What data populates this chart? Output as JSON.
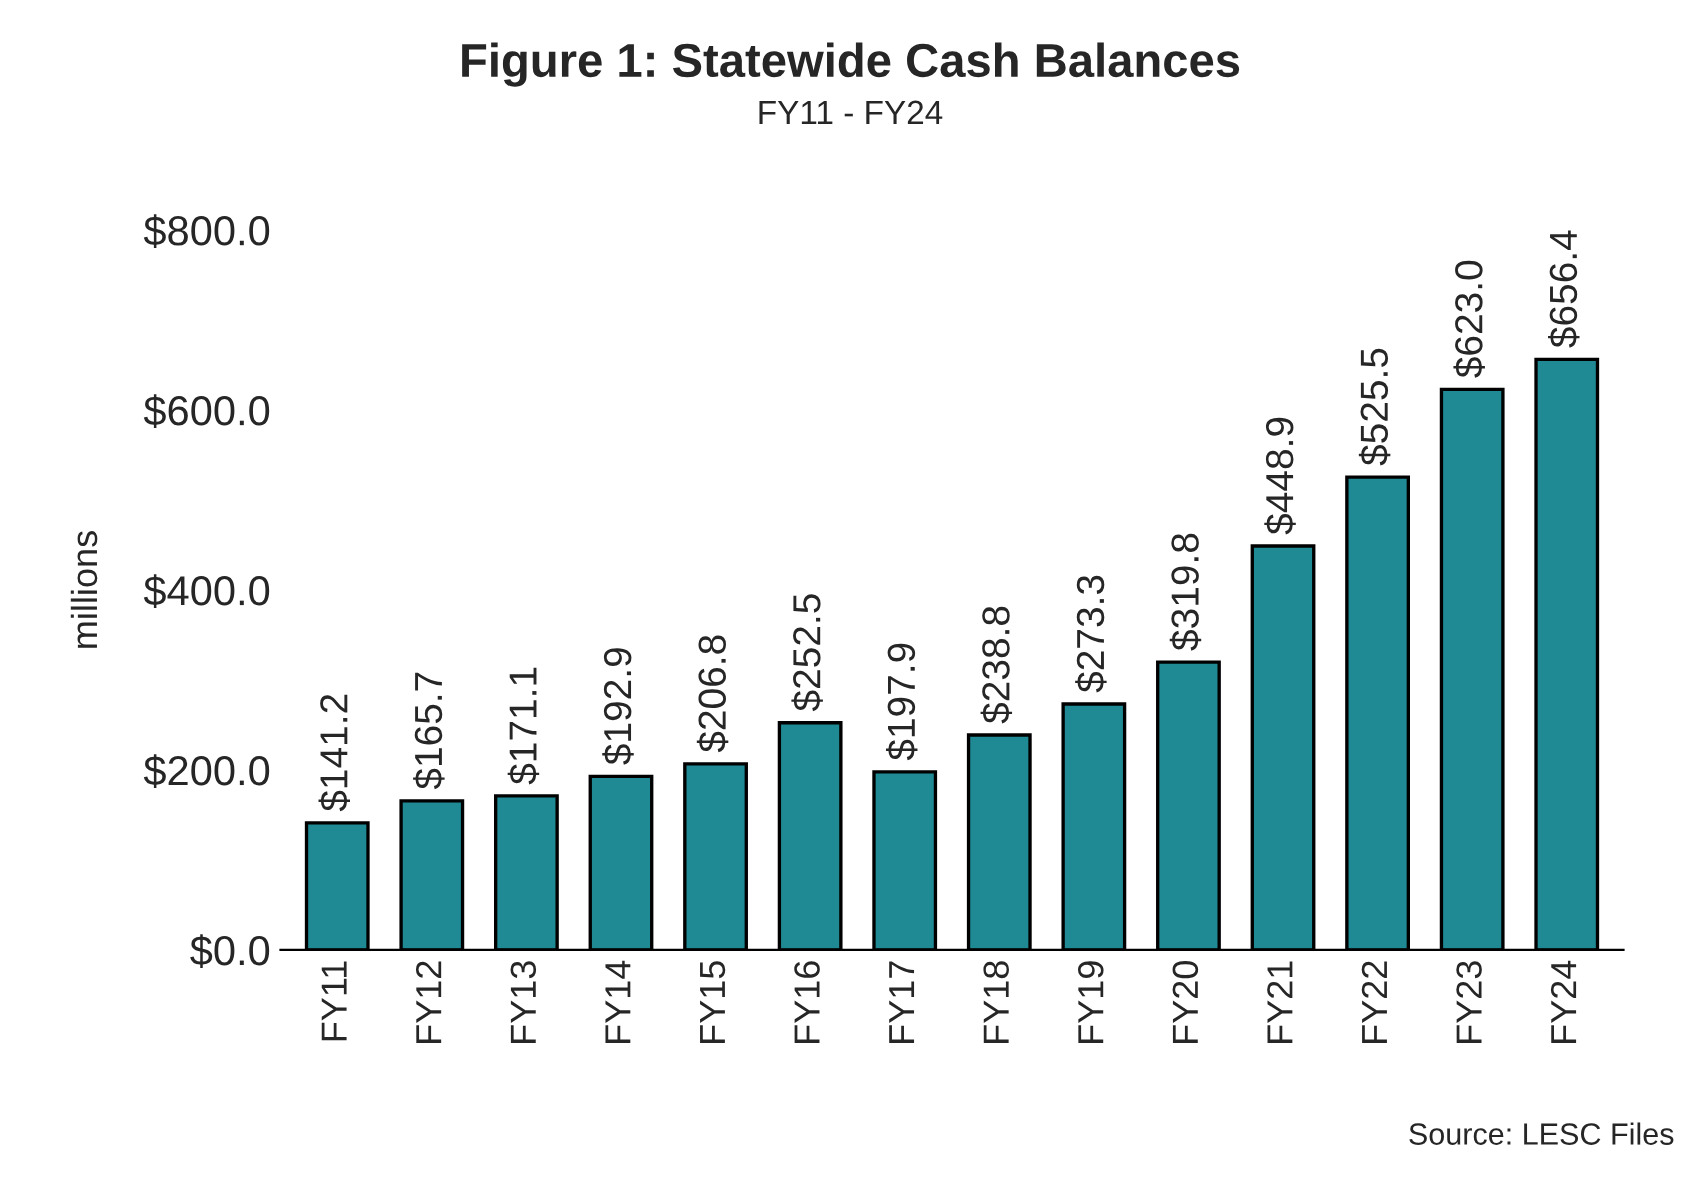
{
  "chart_data": {
    "type": "bar",
    "title": "Figure 1: Statewide Cash Balances",
    "subtitle": "FY11 - FY24",
    "ylabel": "millions",
    "categories": [
      "FY11",
      "FY12",
      "FY13",
      "FY14",
      "FY15",
      "FY16",
      "FY17",
      "FY18",
      "FY19",
      "FY20",
      "FY21",
      "FY22",
      "FY23",
      "FY24"
    ],
    "values": [
      141.2,
      165.7,
      171.1,
      192.9,
      206.8,
      252.5,
      197.9,
      238.8,
      273.3,
      319.8,
      448.9,
      525.5,
      623.0,
      656.4
    ],
    "value_labels": [
      "$141.2",
      "$165.7",
      "$171.1",
      "$192.9",
      "$206.8",
      "$252.5",
      "$197.9",
      "$238.8",
      "$273.3",
      "$319.8",
      "$448.9",
      "$525.5",
      "$623.0",
      "$656.4"
    ],
    "color": "#1f8a93",
    "ylim": [
      0,
      800
    ],
    "yticks": [
      {
        "value": 0,
        "label": "$0.0"
      },
      {
        "value": 200,
        "label": "$200.0"
      },
      {
        "value": 400,
        "label": "$400.0"
      },
      {
        "value": 600,
        "label": "$600.0"
      },
      {
        "value": 800,
        "label": "$800.0"
      }
    ],
    "annotations": [
      "Source: LESC Files"
    ],
    "grid": false
  }
}
